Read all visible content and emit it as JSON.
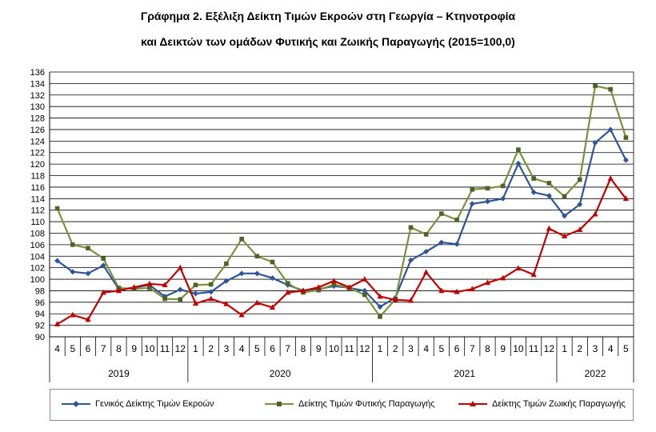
{
  "title_line1": "Γράφημα 2. Εξέλιξη Δείκτη Τιμών Εκροών στη Γεωργία – Κτηνοτροφία",
  "title_line2": "και Δεικτών των ομάδων Φυτικής και Ζωικής Παραγωγής (2015=100,0)",
  "chart_data": {
    "type": "line",
    "title": "Γράφημα 2. Εξέλιξη Δείκτη Τιμών Εκροών στη Γεωργία – Κτηνοτροφία και Δεικτών των ομάδων Φυτικής και Ζωικής Παραγωγής (2015=100,0)",
    "ylim": [
      90,
      136
    ],
    "ytick_step": 2,
    "grid": true,
    "legend_position": "bottom",
    "years": [
      {
        "label": "2019",
        "months": 9
      },
      {
        "label": "2020",
        "months": 12
      },
      {
        "label": "2021",
        "months": 12
      },
      {
        "label": "2022",
        "months": 5
      }
    ],
    "categories": [
      "4",
      "5",
      "6",
      "7",
      "8",
      "9",
      "10",
      "11",
      "12",
      "1",
      "2",
      "3",
      "4",
      "5",
      "6",
      "7",
      "8",
      "9",
      "10",
      "11",
      "12",
      "1",
      "2",
      "3",
      "4",
      "5",
      "6",
      "7",
      "8",
      "9",
      "10",
      "11",
      "12",
      "1",
      "2",
      "3",
      "4",
      "5"
    ],
    "series": [
      {
        "name": "Γενικός Δείκτης Τιμών Εκροών",
        "color": "#2e5597",
        "marker": "diamond",
        "values": [
          103.2,
          101.3,
          101.0,
          102.4,
          98.3,
          98.5,
          99.0,
          97.0,
          98.2,
          97.5,
          97.8,
          99.7,
          101.0,
          101.0,
          100.2,
          99.0,
          98.0,
          98.3,
          98.8,
          98.5,
          98.0,
          95.2,
          96.8,
          103.3,
          104.8,
          106.4,
          106.1,
          113.1,
          113.5,
          114.0,
          120.1,
          115.1,
          114.5,
          111.0,
          113.0,
          123.7,
          126.0,
          120.7
        ]
      },
      {
        "name": "Δείκτης Τιμών Φυτικής Παραγωγής",
        "color": "#77933c",
        "marker": "square",
        "values": [
          112.3,
          106.0,
          105.4,
          103.6,
          98.5,
          98.3,
          98.5,
          96.6,
          96.5,
          99.0,
          99.1,
          102.7,
          107.0,
          104.0,
          103.0,
          99.3,
          97.7,
          98.1,
          99.1,
          98.5,
          97.3,
          93.5,
          96.5,
          109.0,
          107.8,
          111.4,
          110.3,
          115.6,
          115.8,
          116.2,
          122.5,
          117.5,
          116.7,
          114.4,
          117.3,
          133.6,
          133.0,
          124.6
        ]
      },
      {
        "name": "Δείκτης Τιμών Ζωικής Παραγωγής",
        "color": "#c00000",
        "marker": "triangle",
        "values": [
          92.2,
          93.8,
          93.0,
          97.7,
          98.0,
          98.6,
          99.2,
          99.0,
          102.0,
          95.8,
          96.6,
          95.7,
          93.8,
          95.9,
          95.1,
          97.7,
          98.0,
          98.6,
          99.7,
          98.6,
          100.0,
          97.0,
          96.4,
          96.3,
          101.2,
          98.0,
          97.8,
          98.3,
          99.4,
          100.2,
          101.9,
          100.8,
          108.8,
          107.5,
          108.6,
          111.3,
          117.5,
          114.0
        ]
      }
    ]
  }
}
